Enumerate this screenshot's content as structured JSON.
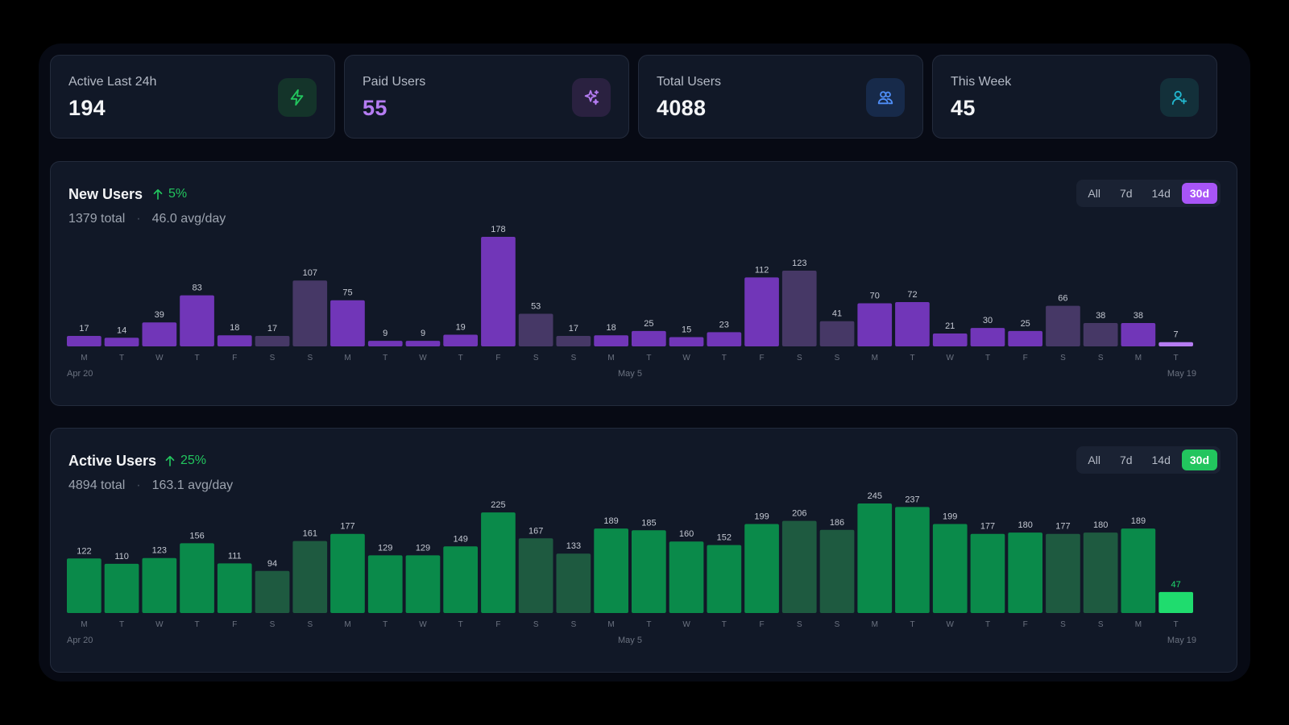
{
  "stats": [
    {
      "label": "Active Last 24h",
      "value": "194",
      "value_color": "#f3f4f6",
      "icon": "bolt-icon",
      "icon_bg": "#14342a",
      "icon_color": "#22c55e"
    },
    {
      "label": "Paid Users",
      "value": "55",
      "value_color": "#b57cf2",
      "icon": "sparkles-icon",
      "icon_bg": "#2a2140",
      "icon_color": "#b57cf2"
    },
    {
      "label": "Total Users",
      "value": "4088",
      "value_color": "#f3f4f6",
      "icon": "users-icon",
      "icon_bg": "#172a4a",
      "icon_color": "#4f8ef7"
    },
    {
      "label": "This Week",
      "value": "45",
      "value_color": "#f3f4f6",
      "icon": "user-plus-icon",
      "icon_bg": "#13303a",
      "icon_color": "#22b8cf"
    }
  ],
  "new_users": {
    "title": "New Users",
    "delta": "5%",
    "total": "1379 total",
    "avg": "46.0 avg/day",
    "ranges": [
      "All",
      "7d",
      "14d",
      "30d"
    ],
    "active_range": "30d",
    "accent": "#a855f7"
  },
  "active_users": {
    "title": "Active Users",
    "delta": "25%",
    "total": "4894 total",
    "avg": "163.1 avg/day",
    "ranges": [
      "All",
      "7d",
      "14d",
      "30d"
    ],
    "active_range": "30d",
    "accent": "#22c55e"
  },
  "chart_data": [
    {
      "type": "bar",
      "title": "New Users",
      "categories": [
        "M",
        "T",
        "W",
        "T",
        "F",
        "S",
        "S",
        "M",
        "T",
        "W",
        "T",
        "F",
        "S",
        "S",
        "M",
        "T",
        "W",
        "T",
        "F",
        "S",
        "S",
        "M",
        "T",
        "W",
        "T",
        "F",
        "S",
        "S",
        "M",
        "T"
      ],
      "values": [
        17,
        14,
        39,
        83,
        18,
        17,
        107,
        75,
        9,
        9,
        19,
        178,
        53,
        17,
        18,
        25,
        15,
        23,
        112,
        123,
        41,
        70,
        72,
        21,
        30,
        25,
        66,
        38,
        38,
        7
      ],
      "date_labels": [
        "Apr 20",
        "May 5",
        "May 19"
      ],
      "colors": {
        "weekday": "#7136b8",
        "weekend": "#463866",
        "today": "#b57cf2"
      },
      "ylim": [
        0,
        178
      ]
    },
    {
      "type": "bar",
      "title": "Active Users",
      "categories": [
        "M",
        "T",
        "W",
        "T",
        "F",
        "S",
        "S",
        "M",
        "T",
        "W",
        "T",
        "F",
        "S",
        "S",
        "M",
        "T",
        "W",
        "T",
        "F",
        "S",
        "S",
        "M",
        "T",
        "W",
        "T",
        "F",
        "S",
        "S",
        "M",
        "T"
      ],
      "values": [
        122,
        110,
        123,
        156,
        111,
        94,
        161,
        177,
        129,
        129,
        149,
        225,
        167,
        133,
        189,
        185,
        160,
        152,
        199,
        206,
        186,
        245,
        237,
        199,
        177,
        180,
        177,
        180,
        189,
        47
      ],
      "date_labels": [
        "Apr 20",
        "May 5",
        "May 19"
      ],
      "colors": {
        "weekday": "#0a8a4a",
        "weekend": "#1e5a40",
        "today": "#1fdc6e"
      },
      "ylim": [
        0,
        245
      ]
    }
  ]
}
